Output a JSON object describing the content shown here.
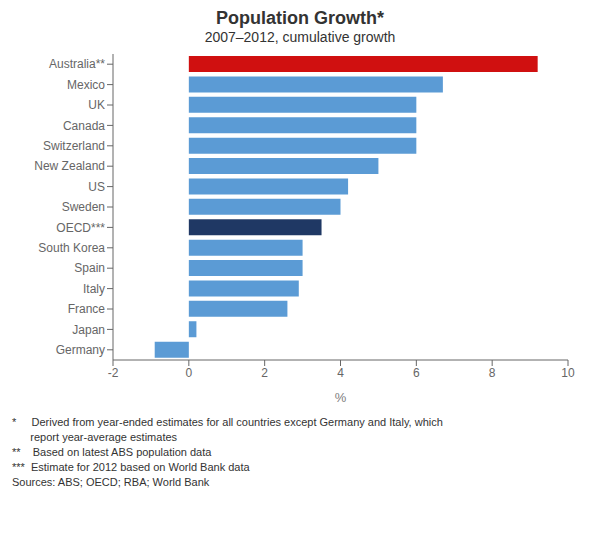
{
  "chart_data": {
    "type": "bar",
    "orientation": "horizontal",
    "title": "Population Growth*",
    "subtitle": "2007–2012, cumulative growth",
    "xlabel": "%",
    "categories": [
      "Australia**",
      "Mexico",
      "UK",
      "Canada",
      "Switzerland",
      "New Zealand",
      "US",
      "Sweden",
      "OECD***",
      "South Korea",
      "Spain",
      "Italy",
      "France",
      "Japan",
      "Germany"
    ],
    "values": [
      9.2,
      6.7,
      6.0,
      6.0,
      6.0,
      5.0,
      4.2,
      4.0,
      3.5,
      3.0,
      3.0,
      2.9,
      2.6,
      0.2,
      -0.9
    ],
    "colors": [
      "#d01010",
      "#5b9bd5",
      "#5b9bd5",
      "#5b9bd5",
      "#5b9bd5",
      "#5b9bd5",
      "#5b9bd5",
      "#5b9bd5",
      "#1f3864",
      "#5b9bd5",
      "#5b9bd5",
      "#5b9bd5",
      "#5b9bd5",
      "#5b9bd5",
      "#5b9bd5"
    ],
    "xlim": [
      -2,
      10
    ],
    "xticks": [
      -2,
      0,
      2,
      4,
      6,
      8,
      10
    ],
    "grid": false,
    "annotations": [
      "*     Derived from year-ended estimates for all countries except Germany and Italy, which",
      "      report year-average estimates",
      "**    Based on latest ABS population data",
      "***  Estimate for 2012 based on World Bank data",
      "Sources: ABS; OECD; RBA; World Bank"
    ]
  }
}
